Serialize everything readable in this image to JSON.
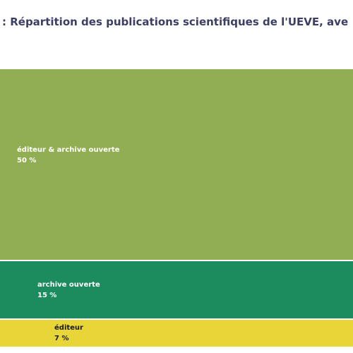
{
  "chart_data": {
    "type": "treemap",
    "title": ": Répartition des publications scientifiques de l'UEVE, ave",
    "segments": [
      {
        "category": "éditeur & archive ouverte",
        "value": 50,
        "value_label": "50 %",
        "color": "#92ae52",
        "text_color": "#ffffff"
      },
      {
        "category": "archive ouverte",
        "value": 15,
        "value_label": "15 %",
        "color": "#1c8c5e",
        "text_color": "#ffffff"
      },
      {
        "category": "éditeur",
        "value": 7,
        "value_label": "7 %",
        "color": "#e8d538",
        "text_color": "#1a1a1a"
      }
    ]
  }
}
